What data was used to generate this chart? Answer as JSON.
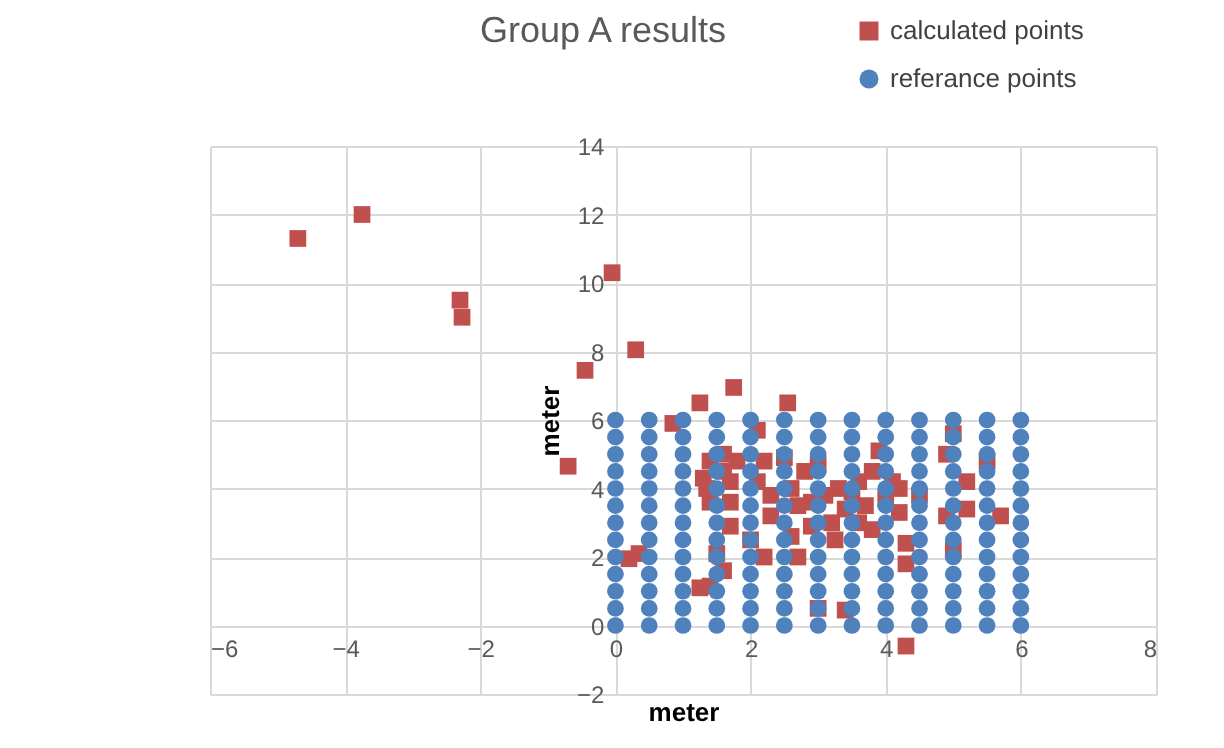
{
  "chart_data": {
    "type": "scatter",
    "title": "Group A results",
    "xlabel": "meter",
    "ylabel": "meter",
    "xlim": [
      -6,
      8
    ],
    "xticks": [
      -6,
      -4,
      -2,
      0,
      2,
      4,
      6,
      8
    ],
    "ylim": [
      -2,
      14
    ],
    "yticks": [
      -2,
      0,
      2,
      4,
      6,
      8,
      10,
      12,
      14
    ],
    "grid": true,
    "legend": "top right",
    "series": [
      {
        "name": "calculated points",
        "color": "#c0504d",
        "marker": "square",
        "x": [
          -4.7,
          -3.75,
          -2.3,
          -2.27,
          -0.05,
          0.3,
          -0.45,
          -0.7,
          0.85,
          1.25,
          1.75,
          2.55,
          0.2,
          0.35,
          1.25,
          1.4,
          1.6,
          1.5,
          1.7,
          1.3,
          1.35,
          1.4,
          1.4,
          1.6,
          1.7,
          1.7,
          1.8,
          1.6,
          2.1,
          2.2,
          2.1,
          2.3,
          2.3,
          2.2,
          2.0,
          2.5,
          2.6,
          2.7,
          2.7,
          2.6,
          2.8,
          2.9,
          3.0,
          3.1,
          3.2,
          3.0,
          3.4,
          3.3,
          3.4,
          3.5,
          3.6,
          3.6,
          3.7,
          3.8,
          3.9,
          3.8,
          4.0,
          4.1,
          4.2,
          4.2,
          4.3,
          4.3,
          4.3,
          4.9,
          5.0,
          5.2,
          5.2,
          4.9,
          5.0,
          5.5,
          5.7,
          4.5,
          3.25,
          2.9
        ],
        "values": [
          11.3,
          12,
          9.5,
          9.0,
          10.3,
          8.05,
          7.45,
          4.65,
          5.9,
          6.5,
          6.95,
          6.5,
          1.95,
          2.1,
          1.1,
          1.15,
          1.6,
          2.1,
          2.9,
          4.3,
          4.0,
          3.6,
          4.8,
          5.0,
          4.2,
          3.6,
          4.8,
          4.5,
          5.7,
          4.8,
          4.2,
          3.8,
          3.2,
          2.0,
          2.5,
          4.9,
          4.0,
          3.5,
          2.0,
          2.6,
          4.5,
          3.6,
          4.7,
          3.8,
          3.0,
          0.5,
          0.45,
          4.0,
          3.4,
          3.9,
          3.0,
          4.2,
          3.5,
          4.5,
          5.1,
          2.8,
          3.7,
          4.2,
          4.0,
          3.3,
          2.4,
          1.8,
          -0.6,
          5.0,
          5.6,
          4.2,
          3.4,
          3.2,
          2.2,
          4.8,
          3.2,
          3.8,
          2.5,
          2.9
        ]
      },
      {
        "name": "referance points",
        "color": "#4f81bd",
        "marker": "circle",
        "x": [
          0,
          0,
          0,
          0,
          0,
          0,
          0,
          0,
          0,
          0,
          0,
          0,
          0,
          0.5,
          0.5,
          0.5,
          0.5,
          0.5,
          0.5,
          0.5,
          0.5,
          0.5,
          0.5,
          0.5,
          0.5,
          0.5,
          1,
          1,
          1,
          1,
          1,
          1,
          1,
          1,
          1,
          1,
          1,
          1,
          1,
          1.5,
          1.5,
          1.5,
          1.5,
          1.5,
          1.5,
          1.5,
          1.5,
          1.5,
          1.5,
          1.5,
          1.5,
          1.5,
          2,
          2,
          2,
          2,
          2,
          2,
          2,
          2,
          2,
          2,
          2,
          2,
          2,
          2.5,
          2.5,
          2.5,
          2.5,
          2.5,
          2.5,
          2.5,
          2.5,
          2.5,
          2.5,
          2.5,
          2.5,
          2.5,
          3,
          3,
          3,
          3,
          3,
          3,
          3,
          3,
          3,
          3,
          3,
          3,
          3,
          3.5,
          3.5,
          3.5,
          3.5,
          3.5,
          3.5,
          3.5,
          3.5,
          3.5,
          3.5,
          3.5,
          3.5,
          3.5,
          4,
          4,
          4,
          4,
          4,
          4,
          4,
          4,
          4,
          4,
          4,
          4,
          4,
          4.5,
          4.5,
          4.5,
          4.5,
          4.5,
          4.5,
          4.5,
          4.5,
          4.5,
          4.5,
          4.5,
          4.5,
          4.5,
          5,
          5,
          5,
          5,
          5,
          5,
          5,
          5,
          5,
          5,
          5,
          5,
          5,
          5.5,
          5.5,
          5.5,
          5.5,
          5.5,
          5.5,
          5.5,
          5.5,
          5.5,
          5.5,
          5.5,
          5.5,
          5.5,
          6,
          6,
          6,
          6,
          6,
          6,
          6,
          6,
          6,
          6,
          6,
          6,
          6
        ],
        "values": [
          0,
          0.5,
          1,
          1.5,
          2,
          2.5,
          3,
          3.5,
          4,
          4.5,
          5,
          5.5,
          6,
          0,
          0.5,
          1,
          1.5,
          2,
          2.5,
          3,
          3.5,
          4,
          4.5,
          5,
          5.5,
          6,
          0,
          0.5,
          1,
          1.5,
          2,
          2.5,
          3,
          3.5,
          4,
          4.5,
          5,
          5.5,
          6,
          0,
          0.5,
          1,
          1.5,
          2,
          2.5,
          3,
          3.5,
          4,
          4.5,
          5,
          5.5,
          6,
          0,
          0.5,
          1,
          1.5,
          2,
          2.5,
          3,
          3.5,
          4,
          4.5,
          5,
          5.5,
          6,
          0,
          0.5,
          1,
          1.5,
          2,
          2.5,
          3,
          3.5,
          4,
          4.5,
          5,
          5.5,
          6,
          0,
          0.5,
          1,
          1.5,
          2,
          2.5,
          3,
          3.5,
          4,
          4.5,
          5,
          5.5,
          6,
          0,
          0.5,
          1,
          1.5,
          2,
          2.5,
          3,
          3.5,
          4,
          4.5,
          5,
          5.5,
          6,
          0,
          0.5,
          1,
          1.5,
          2,
          2.5,
          3,
          3.5,
          4,
          4.5,
          5,
          5.5,
          6,
          0,
          0.5,
          1,
          1.5,
          2,
          2.5,
          3,
          3.5,
          4,
          4.5,
          5,
          5.5,
          6,
          0,
          0.5,
          1,
          1.5,
          2,
          2.5,
          3,
          3.5,
          4,
          4.5,
          5,
          5.5,
          6,
          0,
          0.5,
          1,
          1.5,
          2,
          2.5,
          3,
          3.5,
          4,
          4.5,
          5,
          5.5,
          6,
          0,
          0.5,
          1,
          1.5,
          2,
          2.5,
          3,
          3.5,
          4,
          4.5,
          5,
          5.5,
          6
        ]
      }
    ]
  }
}
